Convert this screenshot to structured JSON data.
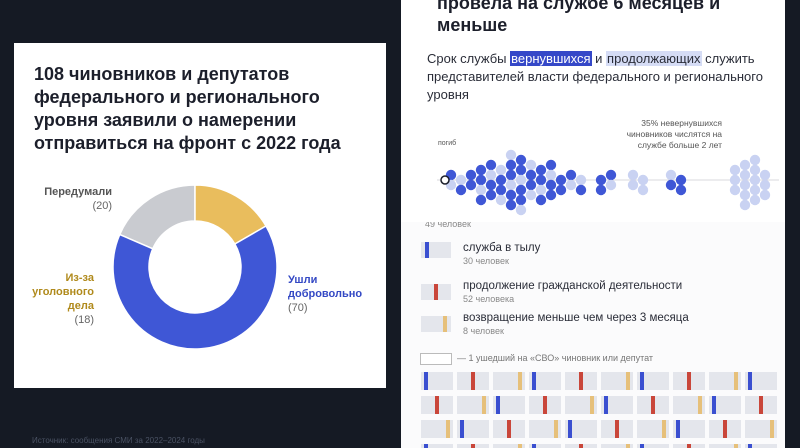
{
  "left": {
    "title": "108 чиновников и депутатов федерального и регионального уровня заявили о намерении отправиться на фронт с 2022 года",
    "labels": [
      {
        "name": "Передумали",
        "count": "(20)"
      },
      {
        "name": "Из-за уголовного дела",
        "count": "(18)"
      },
      {
        "name": "Ушли добровольно",
        "count": "(70)"
      }
    ],
    "source": "Источник: сообщения СМИ за 2022–2024 годы"
  },
  "top_right": {
    "heading": "провела на службе 6 месяцев и меньше",
    "sub_part1": "Срок службы",
    "sub_hl1": "вернувшихся",
    "sub_part2": "и",
    "sub_hl2": "продолжающих",
    "sub_part3": "служить представителей власти федерального и регионального уровня",
    "note": "35% невернувшихся чиновников числятся на службе больше 2 лет",
    "died_label": "погиб"
  },
  "bottom_right": {
    "partial_count": "49 человек",
    "legend": [
      {
        "label": "служба в тылу",
        "count": "30 человек",
        "color": "#3a4fd0"
      },
      {
        "label": "продолжение гражданской деятельности",
        "count": "52 человека",
        "color": "#c9463a"
      },
      {
        "label": "возвращение меньше чем через 3 месяца",
        "count": "8 человек",
        "color": "#e6c07a"
      }
    ],
    "grid_legend": "— 1 ушедший на «СВО» чиновник или депутат"
  },
  "chart_data": {
    "type": "pie",
    "categories": [
      "Передумали",
      "Из-за уголовного дела",
      "Ушли добровольно"
    ],
    "values": [
      20,
      18,
      70
    ],
    "colors": [
      "#c9cbd0",
      "#e9bd5d",
      "#3f57d6"
    ],
    "title": "108 чиновников и депутатов федерального и регионального уровня заявили о намерении отправиться на фронт с 2022 года"
  }
}
